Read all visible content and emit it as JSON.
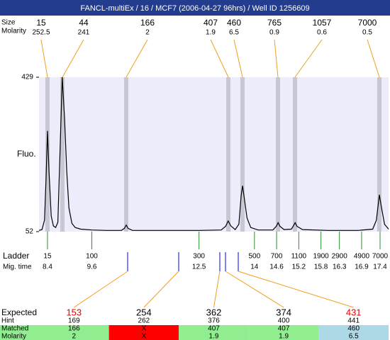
{
  "header": {
    "title": "FANCL-multiEx / 16 / MCF7 (2006-04-27 96hrs) / Well ID 1256609"
  },
  "peaks": {
    "size_label": "Size",
    "molarity_label": "Molarity",
    "sizes": [
      15,
      44,
      166,
      407,
      460,
      765,
      1057,
      7000
    ],
    "molarity": [
      252.5,
      241,
      2,
      1.9,
      6.5,
      0.9,
      0.6,
      0.5
    ]
  },
  "chart_data": {
    "type": "line",
    "y_label": "Fluo.",
    "xlim": [
      8.17,
      17.63
    ],
    "ylim": [
      52,
      429
    ],
    "yticks": [
      52,
      429
    ],
    "color": "#000000",
    "x": [
      8.17,
      8.25,
      8.32,
      8.36,
      8.4,
      8.44,
      8.5,
      8.56,
      8.62,
      8.68,
      8.74,
      8.8,
      8.86,
      8.92,
      8.98,
      9.06,
      9.15,
      9.3,
      9.6,
      10.0,
      10.4,
      10.48,
      10.53,
      10.58,
      10.7,
      11.5,
      12.5,
      13.1,
      13.22,
      13.29,
      13.36,
      13.48,
      13.58,
      13.64,
      13.68,
      13.73,
      13.8,
      13.9,
      14.1,
      14.5,
      14.6,
      14.64,
      14.69,
      14.8,
      15.0,
      15.06,
      15.1,
      15.15,
      15.3,
      16.0,
      16.8,
      17.2,
      17.3,
      17.38,
      17.44,
      17.52,
      17.63
    ],
    "values": [
      55,
      57,
      80,
      180,
      298,
      200,
      90,
      66,
      62,
      75,
      250,
      429,
      330,
      200,
      110,
      72,
      62,
      58,
      56,
      55,
      55,
      60,
      68,
      60,
      55,
      55,
      55,
      56,
      65,
      78,
      66,
      57,
      70,
      140,
      164,
      130,
      85,
      62,
      56,
      56,
      66,
      74,
      65,
      57,
      58,
      67,
      74,
      65,
      57,
      55,
      55,
      58,
      80,
      142,
      110,
      70,
      58
    ]
  },
  "ladder": {
    "label": "Ladder",
    "time_label": "Mig. time",
    "sizes": [
      15,
      100,
      300,
      500,
      700,
      1100,
      1900,
      2900,
      4900,
      7000
    ],
    "mig_times": [
      8.4,
      9.6,
      12.5,
      14,
      14.6,
      15.2,
      15.8,
      16.3,
      16.9,
      17.4
    ],
    "color": "#2e8b2e"
  },
  "table": {
    "row_labels": [
      "Expected",
      "Hint",
      "Matched",
      "Molarity"
    ],
    "expected": [
      153,
      254,
      362,
      374,
      431
    ],
    "expected_colors": [
      "#e00000",
      "#000000",
      "#000000",
      "#000000",
      "#e00000"
    ],
    "hint": [
      169,
      262,
      376,
      400,
      441
    ],
    "matched": [
      166,
      "X",
      407,
      407,
      460
    ],
    "molarity": [
      2,
      "X",
      1.9,
      1.9,
      6.5
    ],
    "status_colors": [
      "#90ee90",
      "#ff0000",
      "#90ee90",
      "#90ee90",
      "#add8e6"
    ]
  }
}
